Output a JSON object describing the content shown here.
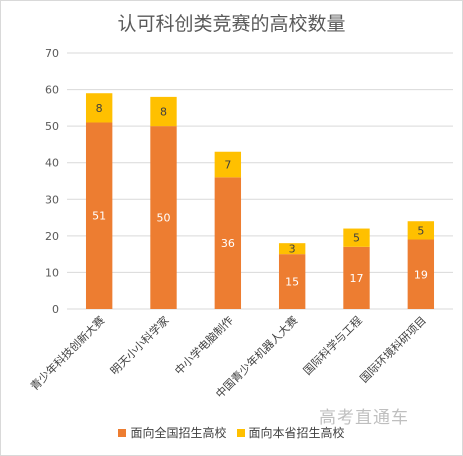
{
  "title": "认可科创类竞赛的高校数量",
  "watermark": "高考直通车",
  "chart_data": {
    "type": "bar",
    "stacked": true,
    "title": "认可科创类竞赛的高校数量",
    "categories": [
      "青少年科技创新大赛",
      "明天小小科学家",
      "中小学电脑制作",
      "中国青少年机器人大赛",
      "国际科学与工程",
      "国际环境科研项目"
    ],
    "series": [
      {
        "name": "面向全国招生高校",
        "color": "#ed7d31",
        "values": [
          51,
          50,
          36,
          15,
          17,
          19
        ]
      },
      {
        "name": "面向本省招生高校",
        "color": "#ffc000",
        "values": [
          8,
          8,
          7,
          3,
          5,
          5
        ]
      }
    ],
    "ylim": [
      0,
      70
    ],
    "yticks": [
      0,
      10,
      20,
      30,
      40,
      50,
      60,
      70
    ],
    "grid": true,
    "legend": "bottom"
  }
}
